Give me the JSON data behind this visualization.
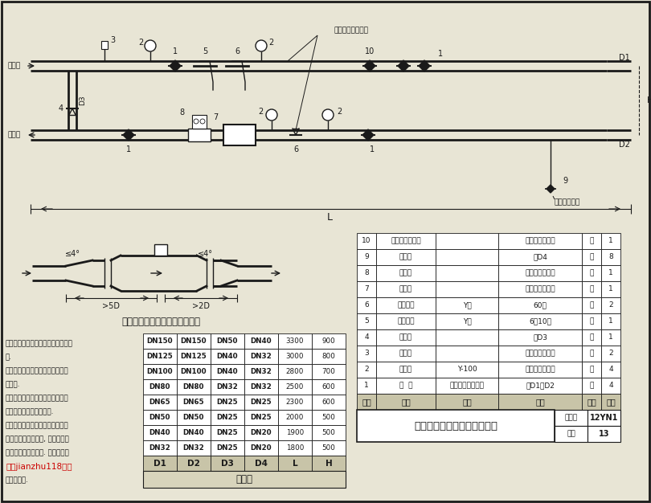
{
  "bg_color": "#e8e5d5",
  "line_color": "#1a1a1a",
  "title_bottom": "带热计量表热水供暖入口装置",
  "fig_num": "12YN1",
  "page_num": "13",
  "size_table_title": "尺寸表",
  "diagram_title": "热量表流量传感器变径管示意图",
  "size_table_headers": [
    "D1",
    "D2",
    "D3",
    "D4",
    "L",
    "H"
  ],
  "size_table_rows": [
    [
      "DN150",
      "DN150",
      "DN50",
      "DN40",
      "3300",
      "900"
    ],
    [
      "DN125",
      "DN125",
      "DN40",
      "DN32",
      "3000",
      "800"
    ],
    [
      "DN100",
      "DN100",
      "DN40",
      "DN32",
      "2800",
      "700"
    ],
    [
      "DN80",
      "DN80",
      "DN32",
      "DN32",
      "2500",
      "600"
    ],
    [
      "DN65",
      "DN65",
      "DN25",
      "DN25",
      "2300",
      "600"
    ],
    [
      "DN50",
      "DN50",
      "DN25",
      "DN25",
      "2000",
      "500"
    ],
    [
      "DN40",
      "DN40",
      "DN25",
      "DN20",
      "1900",
      "500"
    ],
    [
      "DN32",
      "DN32",
      "DN25",
      "DN20",
      "1800",
      "500"
    ]
  ],
  "parts_rows": [
    [
      "10",
      "静态水力平衡阀",
      "",
      "单体工程设计定",
      "个",
      "1"
    ],
    [
      "9",
      "闸板阀",
      "",
      "同D4",
      "个",
      "8"
    ],
    [
      "8",
      "控制鄀",
      "",
      "单体工程设计定",
      "个",
      "1"
    ],
    [
      "7",
      "热量表",
      "",
      "单体工程设计定",
      "个",
      "1"
    ],
    [
      "6",
      "细过滤器",
      "Y型",
      "60目",
      "个",
      "2"
    ],
    [
      "5",
      "粗过滤器",
      "Y型",
      "6～10目",
      "个",
      "1"
    ],
    [
      "4",
      "闸板阀",
      "",
      "同D3",
      "个",
      "1"
    ],
    [
      "3",
      "温度计",
      "",
      "单体工程设计定",
      "个",
      "2"
    ],
    [
      "2",
      "压力表",
      "Y-100",
      "单体工程设计定",
      "个",
      "4"
    ],
    [
      "1",
      "阀  门",
      "闸鄀或全焊接球鄀",
      "同D1或D2",
      "个",
      "4"
    ]
  ],
  "parts_headers": [
    "件号",
    "名称",
    "型号",
    "规格",
    "单位",
    "数量"
  ],
  "supply_label": "供水管",
  "return_label": "回水管",
  "temp_sensor_label": "热量表温度传感器",
  "drain_label": "充（泤）水管",
  "L_label": "L",
  "H_label": "H",
  "D1_label": "D1",
  "D2_label": "D2",
  "D3_label": "D3",
  "notes": [
    "计可根据控制鄀及热量表的安装要求",
    "置.",
    "置可根器需要装设于专用的表计小",
    "表笱内.",
    "的静态水力平衡鄀应根据外网水力",
    "体工程设计确定是否安装.",
    "的控制鄀应根据外网平衡的需求和",
    "供暖系统的调节方式, 设置自力式",
    "鄀或动态阻力平衡鄀. 具体规格由",
    "款号jianzhu118整理",
    "表公称直径."
  ],
  "fig_label": "图集号",
  "page_label": "页次"
}
